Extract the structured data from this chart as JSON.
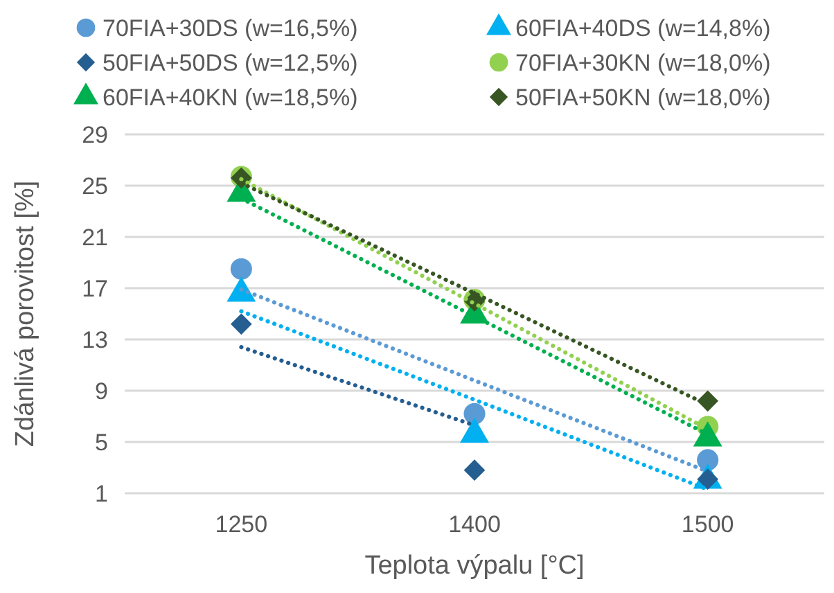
{
  "chart_data": {
    "type": "scatter",
    "xlabel": "Teplota výpalu [°C]",
    "ylabel": "Zdánlivá porovitost [%]",
    "categories": [
      "1250",
      "1400",
      "1500"
    ],
    "ylim": [
      1,
      29
    ],
    "yticks": [
      1,
      5,
      9,
      13,
      17,
      21,
      25,
      29
    ],
    "grid": "y",
    "legend": "top",
    "series": [
      {
        "name": "70FIA+30DS (w=16,5%)",
        "color": "#5b9bd5",
        "marker": "circle",
        "values": [
          18.5,
          7.2,
          3.6
        ]
      },
      {
        "name": "60FIA+40DS (w=14,8%)",
        "color": "#00b0f0",
        "marker": "triangle",
        "values": [
          16.6,
          5.6,
          2.0
        ]
      },
      {
        "name": "50FIA+50DS (w=12,5%)",
        "color": "#255e91",
        "marker": "diamond",
        "values": [
          14.2,
          2.8,
          2.1
        ]
      },
      {
        "name": "70FIA+30KN (w=18,0%)",
        "color": "#92d050",
        "marker": "circle",
        "values": [
          25.7,
          16.1,
          6.2
        ]
      },
      {
        "name": "60FIA+40KN (w=18,5%)",
        "color": "#00b050",
        "marker": "triangle",
        "values": [
          24.4,
          14.9,
          5.3
        ]
      },
      {
        "name": "50FIA+50KN (w=18,0%)",
        "color": "#375623",
        "marker": "diamond",
        "values": [
          25.6,
          16.0,
          8.2
        ]
      },
      {
        "type": "line",
        "color": "#5b9bd5",
        "line_style": "dotted",
        "values": [
          16.9,
          9.8,
          2.7
        ]
      },
      {
        "type": "line",
        "color": "#00b0f0",
        "line_style": "dotted",
        "values": [
          15.2,
          8.3,
          1.3
        ]
      },
      {
        "type": "line",
        "color": "#255e91",
        "line_style": "dotted",
        "values": [
          12.4,
          6.3,
          null
        ]
      },
      {
        "type": "line",
        "color": "#92d050",
        "line_style": "dotted",
        "values": [
          25.5,
          15.8,
          6.0
        ]
      },
      {
        "type": "line",
        "color": "#00b050",
        "line_style": "dotted",
        "values": [
          24.0,
          14.8,
          5.6
        ]
      },
      {
        "type": "line",
        "color": "#375623",
        "line_style": "dotted",
        "values": [
          25.2,
          16.6,
          7.9
        ]
      }
    ]
  }
}
